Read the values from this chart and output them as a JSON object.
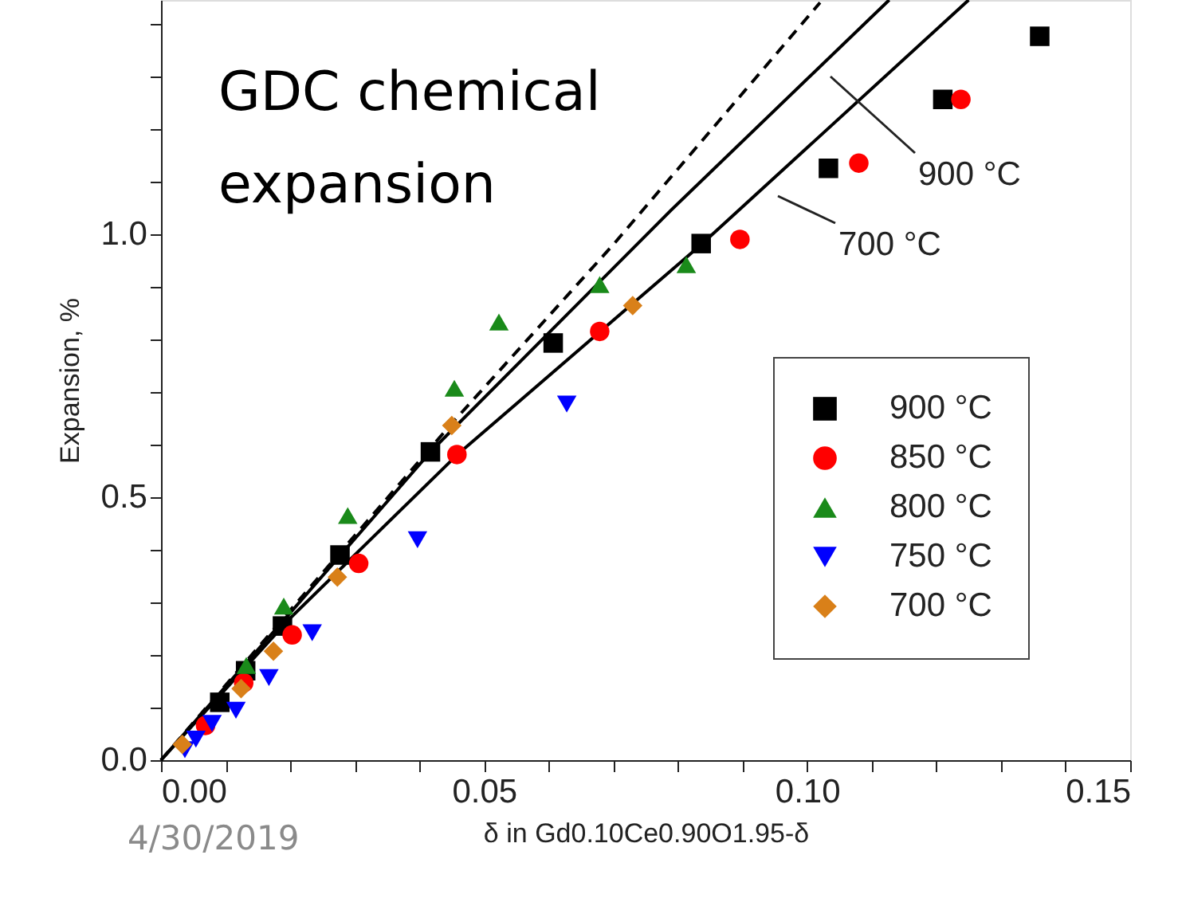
{
  "chart_data": {
    "type": "scatter",
    "xlabel": "δ in Gd0.10Ce0.90O1.95-δ",
    "ylabel": "Expansion, %",
    "xlim": [
      0,
      0.15
    ],
    "ylim": [
      0,
      1.445
    ],
    "xticks": [
      {
        "value": 0,
        "label": "0.00"
      },
      {
        "value": 0.01,
        "label": null
      },
      {
        "value": 0.02,
        "label": null
      },
      {
        "value": 0.03,
        "label": null
      },
      {
        "value": 0.04,
        "label": null
      },
      {
        "value": 0.05,
        "label": "0.05"
      },
      {
        "value": 0.06,
        "label": null
      },
      {
        "value": 0.07,
        "label": null
      },
      {
        "value": 0.08,
        "label": null
      },
      {
        "value": 0.09,
        "label": null
      },
      {
        "value": 0.1,
        "label": "0.10"
      },
      {
        "value": 0.11,
        "label": null
      },
      {
        "value": 0.12,
        "label": null
      },
      {
        "value": 0.13,
        "label": null
      },
      {
        "value": 0.14,
        "label": null
      },
      {
        "value": 0.15,
        "label": "0.15"
      }
    ],
    "yticks": [
      {
        "value": 0,
        "label": "0.0"
      },
      {
        "value": 0.1,
        "label": null
      },
      {
        "value": 0.2,
        "label": null
      },
      {
        "value": 0.3,
        "label": null
      },
      {
        "value": 0.4,
        "label": null
      },
      {
        "value": 0.5,
        "label": "0.5"
      },
      {
        "value": 0.6,
        "label": null
      },
      {
        "value": 0.7,
        "label": null
      },
      {
        "value": 0.8,
        "label": null
      },
      {
        "value": 0.9,
        "label": null
      },
      {
        "value": 1.0,
        "label": "1.0"
      },
      {
        "value": 1.1,
        "label": null
      },
      {
        "value": 1.2,
        "label": null
      },
      {
        "value": 1.3,
        "label": null
      },
      {
        "value": 1.4,
        "label": null
      }
    ],
    "grid": false,
    "legend": "bottom right",
    "series": [
      {
        "name": "900 °C",
        "color": "#000000",
        "marker": "square",
        "x": [
          0.0091,
          0.0131,
          0.0188,
          0.0277,
          0.0417,
          0.0607,
          0.0836,
          0.1033,
          0.121,
          0.136
        ],
        "values": [
          0.11,
          0.17,
          0.255,
          0.39,
          0.586,
          0.793,
          0.982,
          1.125,
          1.256,
          1.376
        ]
      },
      {
        "name": "850 °C",
        "color": "#ff0000",
        "marker": "circle",
        "x": [
          0.0069,
          0.0128,
          0.0203,
          0.0306,
          0.0458,
          0.0679,
          0.0896,
          0.108,
          0.1238
        ],
        "values": [
          0.066,
          0.147,
          0.238,
          0.374,
          0.581,
          0.815,
          0.99,
          1.135,
          1.256
        ]
      },
      {
        "name": "800 °C",
        "color": "#1a8a1a",
        "marker": "triangle",
        "x": [
          0.0132,
          0.019,
          0.0289,
          0.0454,
          0.0523,
          0.0679,
          0.0813
        ],
        "values": [
          0.18,
          0.293,
          0.465,
          0.707,
          0.833,
          0.904,
          0.942
        ]
      },
      {
        "name": "750 °C",
        "color": "#0000ff",
        "marker": "triangle-down",
        "x": [
          0.0037,
          0.0054,
          0.0079,
          0.0116,
          0.0167,
          0.0234,
          0.0397,
          0.0628
        ],
        "values": [
          0.02,
          0.04,
          0.07,
          0.095,
          0.157,
          0.242,
          0.419,
          0.677
        ]
      },
      {
        "name": "700 °C",
        "color": "#d98019",
        "marker": "diamond",
        "x": [
          0.0033,
          0.0124,
          0.0174,
          0.0273,
          0.045,
          0.073
        ],
        "values": [
          0.03,
          0.136,
          0.207,
          0.348,
          0.636,
          0.864
        ]
      },
      {
        "type": "line",
        "color": "#000000",
        "line_style": "dashed",
        "x": [
          0,
          0.02,
          0.045,
          0.07,
          0.102
        ],
        "values": [
          0,
          0.285,
          0.64,
          0.98,
          1.44
        ]
      },
      {
        "type": "line",
        "color": "#000000",
        "line_style": "solid",
        "x": [
          0,
          0.02,
          0.042,
          0.0789,
          0.1127
        ],
        "values": [
          0,
          0.28,
          0.59,
          1.045,
          1.445
        ]
      },
      {
        "type": "line",
        "color": "#000000",
        "line_style": "solid",
        "x": [
          0,
          0.02,
          0.0458,
          0.0836,
          0.125
        ],
        "values": [
          0,
          0.27,
          0.58,
          0.98,
          1.445
        ]
      }
    ],
    "annotations": [
      "900 °C",
      "700 °C",
      "GDC chemical\nexpansion",
      "4/30/2019"
    ]
  }
}
